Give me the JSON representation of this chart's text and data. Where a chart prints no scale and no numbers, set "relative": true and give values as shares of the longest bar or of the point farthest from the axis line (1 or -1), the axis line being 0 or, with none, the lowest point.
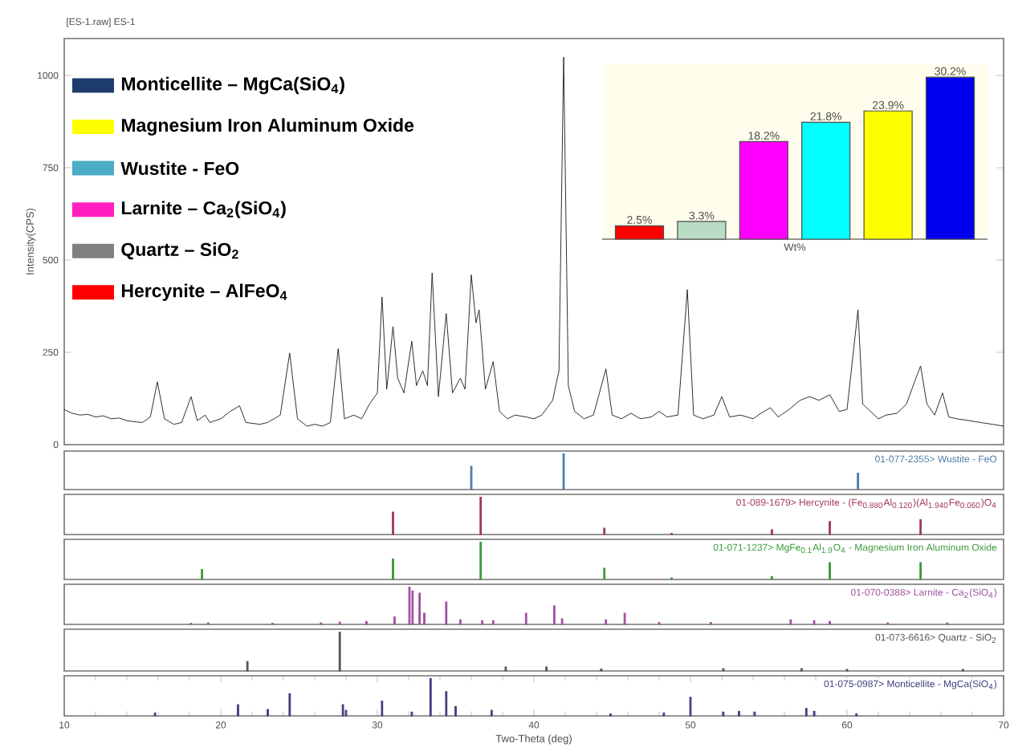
{
  "chart_data": [
    {
      "type": "line",
      "title": "[ES-1.raw] ES-1",
      "ylabel": "Intensity(CPS)",
      "xlim": [
        10,
        70
      ],
      "ylim": [
        0,
        1100
      ],
      "yticks": [
        0,
        250,
        500,
        750,
        1000
      ],
      "tick_labels": "y",
      "x": [
        10,
        10.5,
        11,
        11.5,
        12,
        12.5,
        13,
        13.5,
        14,
        14.5,
        15,
        15.5,
        15.95,
        16.4,
        17,
        17.5,
        18.1,
        18.5,
        19,
        19.3,
        20,
        20.6,
        21.2,
        21.6,
        22.5,
        23,
        23.8,
        24.4,
        24.9,
        25.5,
        26,
        26.5,
        27,
        27.5,
        27.9,
        28.5,
        29,
        29.5,
        30.0,
        30.3,
        30.6,
        31.0,
        31.3,
        31.7,
        32.2,
        32.5,
        32.9,
        33.2,
        33.5,
        33.9,
        34.4,
        34.8,
        35.3,
        35.6,
        36.0,
        36.3,
        36.5,
        36.9,
        37.4,
        37.8,
        38.3,
        38.8,
        39.5,
        40,
        40.5,
        41.2,
        41.6,
        41.9,
        42.2,
        42.6,
        43.2,
        43.8,
        44.6,
        45.0,
        45.6,
        46.2,
        46.8,
        47.5,
        48.0,
        48.5,
        49.2,
        49.8,
        50.2,
        50.8,
        51.5,
        52.0,
        52.5,
        53.2,
        54,
        54.5,
        55.1,
        55.6,
        56.3,
        57.0,
        57.6,
        58.2,
        58.9,
        59.5,
        60.0,
        60.7,
        61.0,
        61.5,
        62,
        62.5,
        63.2,
        63.8,
        64.4,
        64.7,
        65.1,
        65.6,
        66.1,
        66.5,
        67,
        67.8,
        68.5,
        69.3,
        70
      ],
      "series": [
        {
          "color": "#1a1a1a",
          "values": [
            95,
            85,
            80,
            82,
            75,
            78,
            70,
            72,
            65,
            62,
            60,
            75,
            170,
            70,
            55,
            60,
            130,
            65,
            80,
            60,
            70,
            90,
            105,
            60,
            55,
            60,
            80,
            248,
            70,
            50,
            55,
            50,
            60,
            260,
            70,
            80,
            70,
            110,
            140,
            400,
            150,
            320,
            180,
            140,
            280,
            160,
            200,
            160,
            465,
            130,
            355,
            140,
            180,
            150,
            460,
            330,
            365,
            150,
            225,
            90,
            70,
            80,
            75,
            70,
            80,
            120,
            200,
            1050,
            160,
            90,
            70,
            80,
            205,
            80,
            70,
            85,
            70,
            75,
            90,
            75,
            80,
            420,
            80,
            70,
            80,
            130,
            75,
            80,
            70,
            85,
            100,
            75,
            95,
            120,
            130,
            120,
            135,
            90,
            95,
            365,
            110,
            90,
            70,
            80,
            85,
            110,
            180,
            213,
            110,
            80,
            140,
            75,
            70,
            65,
            60,
            55,
            50
          ]
        }
      ]
    },
    {
      "type": "other",
      "categories": [
        "Monticellite – MgCa(SiO$_{4}$)",
        "Magnesium Iron Aluminum Oxide",
        "Wustite - FeO",
        "Larnite – Ca$_{2}$(SiO$_{4}$)",
        "Quartz – SiO$_{2}$",
        "Hercynite – AlFeO$_{4}$"
      ],
      "colors": [
        "#1f3c6e",
        "#ffff00",
        "#4bacc6",
        "#ff1fbf",
        "#808080",
        "#ff0000"
      ]
    },
    {
      "type": "bar",
      "xlabel": "Wt%",
      "categories": [
        null,
        null,
        null,
        null,
        null,
        null
      ],
      "values": [
        2.5,
        3.3,
        18.2,
        21.8,
        23.9,
        30.2
      ],
      "colors": [
        "#ff0000",
        "#b8dcc4",
        "#ff00ff",
        "#00ffff",
        "#ffff00",
        "#0000ee"
      ],
      "value_labels": [
        "2.5%",
        "3.3%",
        "18.2%",
        "21.8%",
        "23.9%",
        "30.2%"
      ]
    },
    {
      "type": "bar",
      "title": "01-077-2355> Wustite - FeO",
      "relative": true,
      "xlim": [
        10,
        70
      ],
      "tick_labels": false,
      "x": [
        36.0,
        41.9,
        60.7
      ],
      "series": [
        {
          "color": "#4a7aa8",
          "values": [
            0.65,
            1,
            0.46
          ]
        }
      ]
    },
    {
      "type": "bar",
      "title": "01-089-1679> Hercynite - (Fe$_{0.880}$Al$_{0.120}$)(Al$_{1.940}$Fe$_{0.060}$)O$_{4}$",
      "relative": true,
      "xlim": [
        10,
        70
      ],
      "tick_labels": false,
      "x": [
        31.0,
        36.6,
        44.5,
        48.8,
        55.2,
        58.9,
        64.7
      ],
      "series": [
        {
          "color": "#a03a5a",
          "values": [
            0.6,
            1,
            0.17,
            0.03,
            0.13,
            0.35,
            0.4
          ]
        }
      ]
    },
    {
      "type": "bar",
      "title": "01-071-1237> MgFe$_{0.1}$Al$_{1.9}$O$_{4}$ - Magnesium Iron Aluminum Oxide",
      "relative": true,
      "xlim": [
        10,
        70
      ],
      "tick_labels": false,
      "x": [
        18.8,
        31.0,
        36.6,
        44.5,
        48.8,
        55.2,
        58.9,
        64.7
      ],
      "series": [
        {
          "color": "#3a9a3a",
          "values": [
            0.27,
            0.55,
            1,
            0.3,
            0.04,
            0.08,
            0.45,
            0.45
          ]
        }
      ]
    },
    {
      "type": "bar",
      "title": "01-070-0388> Larnite - Ca$_{2}$(SiO$_{4}$)",
      "relative": true,
      "xlim": [
        10,
        70
      ],
      "tick_labels": false,
      "x": [
        18.1,
        19.2,
        23.3,
        26.4,
        27.6,
        29.3,
        31.1,
        32.05,
        32.25,
        32.7,
        33.0,
        34.4,
        35.3,
        36.7,
        37.4,
        39.5,
        41.3,
        41.8,
        44.6,
        45.8,
        48.0,
        51.3,
        56.4,
        57.9,
        58.9,
        62.6,
        66.4
      ],
      "series": [
        {
          "color": "#a050a0",
          "values": [
            0.03,
            0.04,
            0.03,
            0.04,
            0.06,
            0.08,
            0.2,
            1,
            0.9,
            0.84,
            0.3,
            0.6,
            0.12,
            0.1,
            0.1,
            0.3,
            0.5,
            0.15,
            0.12,
            0.3,
            0.05,
            0.05,
            0.12,
            0.1,
            0.08,
            0.04,
            0.04
          ]
        }
      ]
    },
    {
      "type": "bar",
      "title": "01-073-6616> Quartz - SiO$_{2}$",
      "relative": true,
      "xlim": [
        10,
        70
      ],
      "tick_labels": false,
      "x": [
        21.7,
        27.6,
        38.2,
        40.8,
        44.3,
        52.1,
        57.1,
        60.0,
        67.4
      ],
      "series": [
        {
          "color": "#555555",
          "values": [
            0.24,
            1,
            0.1,
            0.1,
            0.05,
            0.06,
            0.06,
            0.04,
            0.04
          ]
        }
      ]
    },
    {
      "type": "bar",
      "title": "01-075-0987> Monticellite - MgCa(SiO$_{4}$)",
      "xlabel": "Two-Theta (deg)",
      "relative": true,
      "xlim": [
        10,
        70
      ],
      "xticks": [
        10,
        20,
        30,
        40,
        50,
        60,
        70
      ],
      "tick_labels": "x",
      "x": [
        15.8,
        21.1,
        23.0,
        24.4,
        27.8,
        28.0,
        30.3,
        32.2,
        33.4,
        34.4,
        35.0,
        37.3,
        44.9,
        48.3,
        50.0,
        52.1,
        53.1,
        54.1,
        57.4,
        57.9,
        60.6
      ],
      "series": [
        {
          "color": "#404080",
          "values": [
            0.08,
            0.3,
            0.17,
            0.6,
            0.3,
            0.15,
            0.4,
            0.1,
            1,
            0.65,
            0.25,
            0.15,
            0.05,
            0.08,
            0.5,
            0.1,
            0.12,
            0.1,
            0.2,
            0.12,
            0.06
          ]
        }
      ]
    }
  ]
}
